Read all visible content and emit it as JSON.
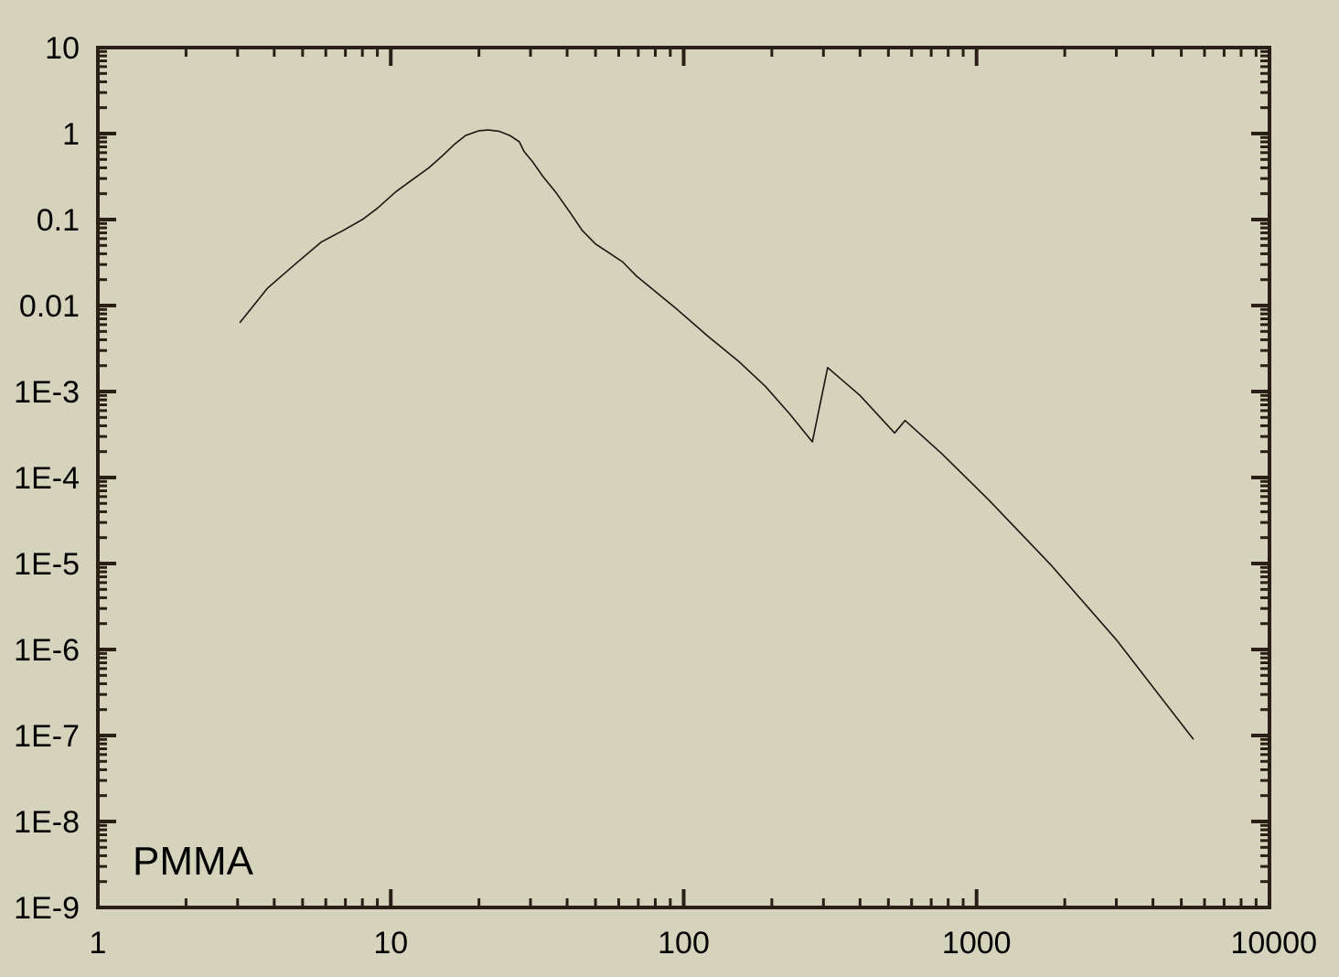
{
  "colors": {
    "background": "#d6d3bd",
    "frame": "#2a1f14",
    "line": "#1a1410",
    "text": "#000000"
  },
  "chart_data": {
    "type": "line",
    "title": "",
    "xlabel": "",
    "ylabel": "",
    "xscale": "log",
    "yscale": "log",
    "xlim": [
      1,
      10000
    ],
    "ylim": [
      1e-09,
      10
    ],
    "grid": false,
    "x_ticks": [
      {
        "value": 1,
        "label": "1"
      },
      {
        "value": 10,
        "label": "10"
      },
      {
        "value": 100,
        "label": "100"
      },
      {
        "value": 1000,
        "label": "1000"
      },
      {
        "value": 10000,
        "label": "10000"
      }
    ],
    "y_ticks": [
      {
        "value": 10,
        "label": "10"
      },
      {
        "value": 1,
        "label": "1"
      },
      {
        "value": 0.1,
        "label": "0.1"
      },
      {
        "value": 0.01,
        "label": "0.01"
      },
      {
        "value": 0.001,
        "label": "1E-3"
      },
      {
        "value": 0.0001,
        "label": "1E-4"
      },
      {
        "value": 1e-05,
        "label": "1E-5"
      },
      {
        "value": 1e-06,
        "label": "1E-6"
      },
      {
        "value": 1e-07,
        "label": "1E-7"
      },
      {
        "value": 1e-08,
        "label": "1E-8"
      },
      {
        "value": 1e-09,
        "label": "1E-9"
      }
    ],
    "annotations": [
      {
        "text": "PMMA",
        "position": "bottom-left"
      }
    ],
    "series": [
      {
        "x": [
          3.05,
          3.8,
          4.7,
          5.8,
          6.9,
          8.0,
          9.0,
          10.4,
          12.0,
          13.5,
          15.0,
          16.5,
          18.0,
          20.0,
          21.5,
          23.5,
          25.5,
          27.5,
          28.5,
          30.5,
          33.0,
          36.5,
          41.0,
          45.0,
          50.0,
          55.0,
          62.0,
          69.0,
          75.0,
          95.0,
          120.0,
          155.0,
          190.0,
          230.0,
          275.0,
          310.0,
          400.0,
          525.0,
          570.0,
          760.0,
          1100.0,
          1800.0,
          3000.0,
          5500.0
        ],
        "y": [
          0.0063,
          0.016,
          0.03,
          0.055,
          0.075,
          0.1,
          0.135,
          0.21,
          0.3,
          0.4,
          0.55,
          0.75,
          0.95,
          1.08,
          1.1,
          1.06,
          0.95,
          0.8,
          0.62,
          0.47,
          0.32,
          0.21,
          0.12,
          0.075,
          0.052,
          0.042,
          0.032,
          0.022,
          0.0175,
          0.009,
          0.0045,
          0.0022,
          0.00115,
          0.00055,
          0.00026,
          0.0019,
          0.0009,
          0.00033,
          0.00046,
          0.00019,
          5.5e-05,
          9.5e-06,
          1.3e-06,
          9e-08
        ]
      }
    ]
  }
}
